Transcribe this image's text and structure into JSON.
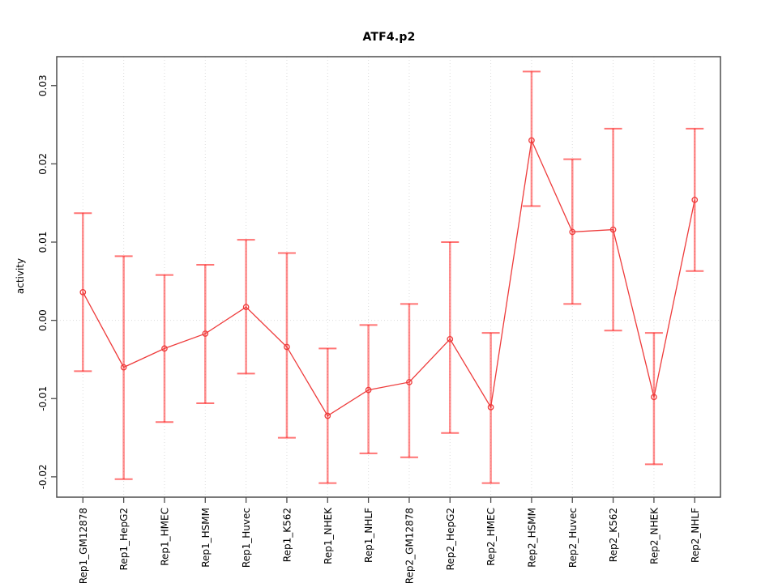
{
  "chart_data": {
    "type": "line",
    "title": "ATF4.p2",
    "xlabel": "",
    "ylabel": "activity",
    "legend": "none",
    "grid": "dotted vertical gridline at each category; dotted horizontal line at 0",
    "categories": [
      "Rep1_GM12878",
      "Rep1_HepG2",
      "Rep1_HMEC",
      "Rep1_HSMM",
      "Rep1_Huvec",
      "Rep1_K562",
      "Rep1_NHEK",
      "Rep1_NHLF",
      "Rep2_GM12878",
      "Rep2_HepG2",
      "Rep2_HMEC",
      "Rep2_HSMM",
      "Rep2_Huvec",
      "Rep2_K562",
      "Rep2_NHEK",
      "Rep2_NHLF"
    ],
    "series": [
      {
        "name": "activity",
        "values": [
          0.0036,
          -0.006,
          -0.0036,
          -0.0017,
          0.0017,
          -0.0034,
          -0.0122,
          -0.0089,
          -0.0079,
          -0.0024,
          -0.0111,
          0.023,
          0.0113,
          0.0116,
          -0.0098,
          0.0154
        ],
        "error_high": [
          0.0137,
          0.0082,
          0.0058,
          0.0071,
          0.0103,
          0.0086,
          -0.0036,
          -0.0006,
          0.0021,
          0.01,
          -0.0016,
          0.0318,
          0.0206,
          0.0245,
          -0.0016,
          0.0245
        ],
        "error_low": [
          -0.0065,
          -0.0203,
          -0.013,
          -0.0106,
          -0.0068,
          -0.015,
          -0.0208,
          -0.017,
          -0.0175,
          -0.0144,
          -0.0208,
          0.0146,
          0.0021,
          -0.0013,
          -0.0184,
          0.0063
        ]
      }
    ],
    "yticks": [
      -0.02,
      -0.01,
      0.0,
      0.01,
      0.02,
      0.03
    ],
    "ylim": [
      -0.0226,
      0.0337
    ],
    "colors": {
      "line": "#ee3b3b",
      "point": "#ee3b3b",
      "error_bar": "rgba(255,0,0,0.45)",
      "error_cap": "rgba(255,0,0,0.55)",
      "grid": "#dcdcdc",
      "axis": "#4d4d4d",
      "text": "#000000"
    }
  }
}
